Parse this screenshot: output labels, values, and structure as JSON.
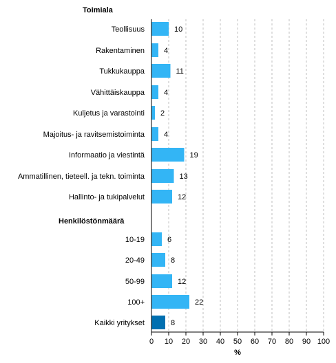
{
  "chart_data": {
    "type": "bar",
    "orientation": "horizontal",
    "groups": [
      {
        "title": "Toimiala",
        "categories": [
          "Teollisuus",
          "Rakentaminen",
          "Tukkukauppa",
          "Vähittäiskauppa",
          "Kuljetus ja varastointi",
          "Majoitus- ja ravitsemistoiminta",
          "Informaatio ja viestintä",
          "Ammatillinen, tieteell. ja tekn. toiminta",
          "Hallinto- ja tukipalvelut"
        ],
        "values": [
          10,
          4,
          11,
          4,
          2,
          4,
          19,
          13,
          12
        ]
      },
      {
        "title": "Henkilöstönmäärä",
        "categories": [
          "10-19",
          "20-49",
          "50-99",
          "100+"
        ],
        "values": [
          6,
          8,
          12,
          22
        ]
      },
      {
        "title": "",
        "categories": [
          "Kaikki yritykset"
        ],
        "values": [
          8
        ],
        "highlight": true
      }
    ],
    "xlabel": "%",
    "xlim": [
      0,
      100
    ],
    "xticks": [
      0,
      10,
      20,
      30,
      40,
      50,
      60,
      70,
      80,
      90,
      100
    ],
    "grid": "vertical dashed",
    "colors": {
      "bar": "#33b5f5",
      "highlight": "#006fb0",
      "grid": "#b0b0b0",
      "axis": "#000000"
    }
  }
}
